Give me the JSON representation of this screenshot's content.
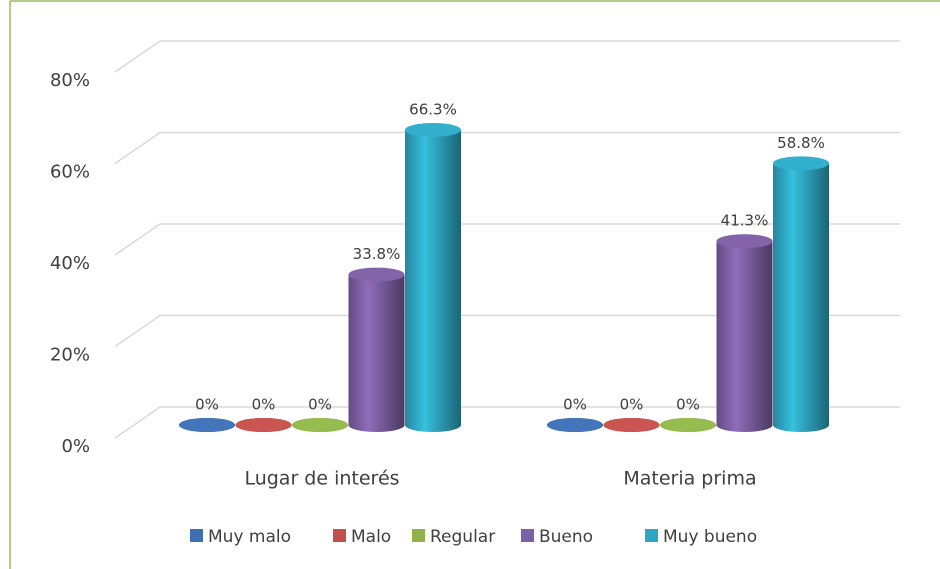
{
  "chart_data": {
    "type": "bar3d",
    "categories": [
      "Lugar de interés",
      "Materia prima"
    ],
    "series": [
      {
        "name": "Muy malo",
        "color": "#3f6fb0",
        "values": [
          0,
          0
        ],
        "value_labels": [
          "0%",
          "0%"
        ]
      },
      {
        "name": "Malo",
        "color": "#c0504d",
        "values": [
          0,
          0
        ],
        "value_labels": [
          "0%",
          "0%"
        ]
      },
      {
        "name": "Regular",
        "color": "#8fb24a",
        "values": [
          0,
          0
        ],
        "value_labels": [
          "0%",
          "0%"
        ]
      },
      {
        "name": "Bueno",
        "color": "#7d5fa3",
        "values": [
          33.8,
          41.3
        ],
        "value_labels": [
          "33.8%",
          "41.3%"
        ]
      },
      {
        "name": "Muy bueno",
        "color": "#2fa7c3",
        "values": [
          66.3,
          58.8
        ],
        "value_labels": [
          "66.3%",
          "58.8%"
        ]
      }
    ],
    "ylim": [
      0,
      80
    ],
    "yticks": [
      {
        "value": 0,
        "label": "0%"
      },
      {
        "value": 20,
        "label": "20%"
      },
      {
        "value": 40,
        "label": "40%"
      },
      {
        "value": 60,
        "label": "60%"
      },
      {
        "value": 80,
        "label": "80%"
      }
    ],
    "grid": true,
    "legend": "bottom"
  }
}
